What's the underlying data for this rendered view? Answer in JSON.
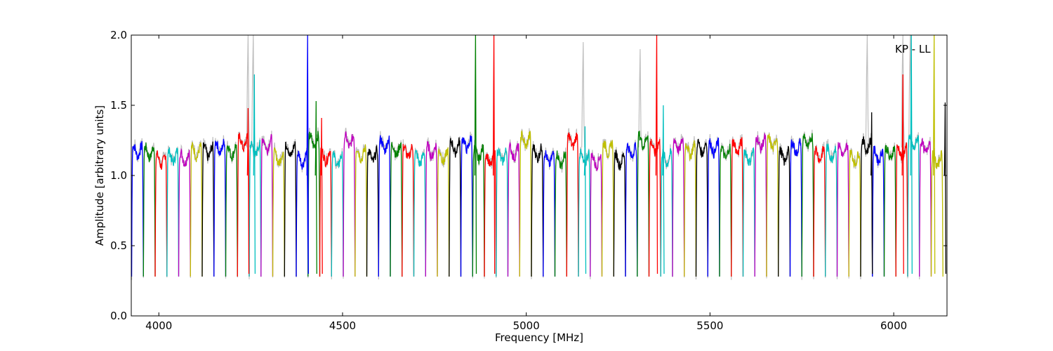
{
  "chart_data": {
    "type": "line",
    "title": "",
    "xlabel": "Frequency [MHz]",
    "ylabel": "Amplitude [arbitrary units]",
    "xlim": [
      3925,
      6145
    ],
    "ylim": [
      0.0,
      2.0
    ],
    "xticks": [
      4000,
      4500,
      5000,
      5500,
      6000
    ],
    "xtick_labels": [
      "4000",
      "4500",
      "5000",
      "5500",
      "6000"
    ],
    "yticks": [
      0.0,
      0.5,
      1.0,
      1.5,
      2.0
    ],
    "ytick_labels": [
      "0.0",
      "0.5",
      "1.0",
      "1.5",
      "2.0"
    ],
    "grid": false,
    "annotation": "KP - LL",
    "background_series_color": "#bfbfbf",
    "channel_colors": [
      "#0000ff",
      "#008000",
      "#ff0000",
      "#00bfbf",
      "#bf00bf",
      "#bfbf00",
      "#000000"
    ],
    "channel_width_mhz": 32,
    "channel_start_mhz": 3926,
    "channel_count": 69,
    "typical_passband_level": 1.2,
    "typical_edge_minimum": 0.28,
    "spikes": [
      {
        "x": 4243,
        "y": 1.48
      },
      {
        "x": 4260,
        "y": 1.72
      },
      {
        "x": 4405,
        "y": 2.0
      },
      {
        "x": 4428,
        "y": 1.53
      },
      {
        "x": 4443,
        "y": 1.41
      },
      {
        "x": 4862,
        "y": 2.0
      },
      {
        "x": 4912,
        "y": 2.0
      },
      {
        "x": 5160,
        "y": 1.35
      },
      {
        "x": 5355,
        "y": 2.0
      },
      {
        "x": 5373,
        "y": 1.5
      },
      {
        "x": 5940,
        "y": 1.45
      },
      {
        "x": 6025,
        "y": 1.72
      },
      {
        "x": 6048,
        "y": 2.0
      },
      {
        "x": 6110,
        "y": 2.0
      },
      {
        "x": 6140,
        "y": 1.52
      }
    ],
    "grey_spikes": [
      {
        "x": 4243,
        "y": 2.0
      },
      {
        "x": 4257,
        "y": 2.0
      },
      {
        "x": 5155,
        "y": 1.95
      },
      {
        "x": 5310,
        "y": 1.9
      },
      {
        "x": 5928,
        "y": 2.0
      },
      {
        "x": 6025,
        "y": 2.0
      },
      {
        "x": 6045,
        "y": 2.0
      }
    ]
  }
}
